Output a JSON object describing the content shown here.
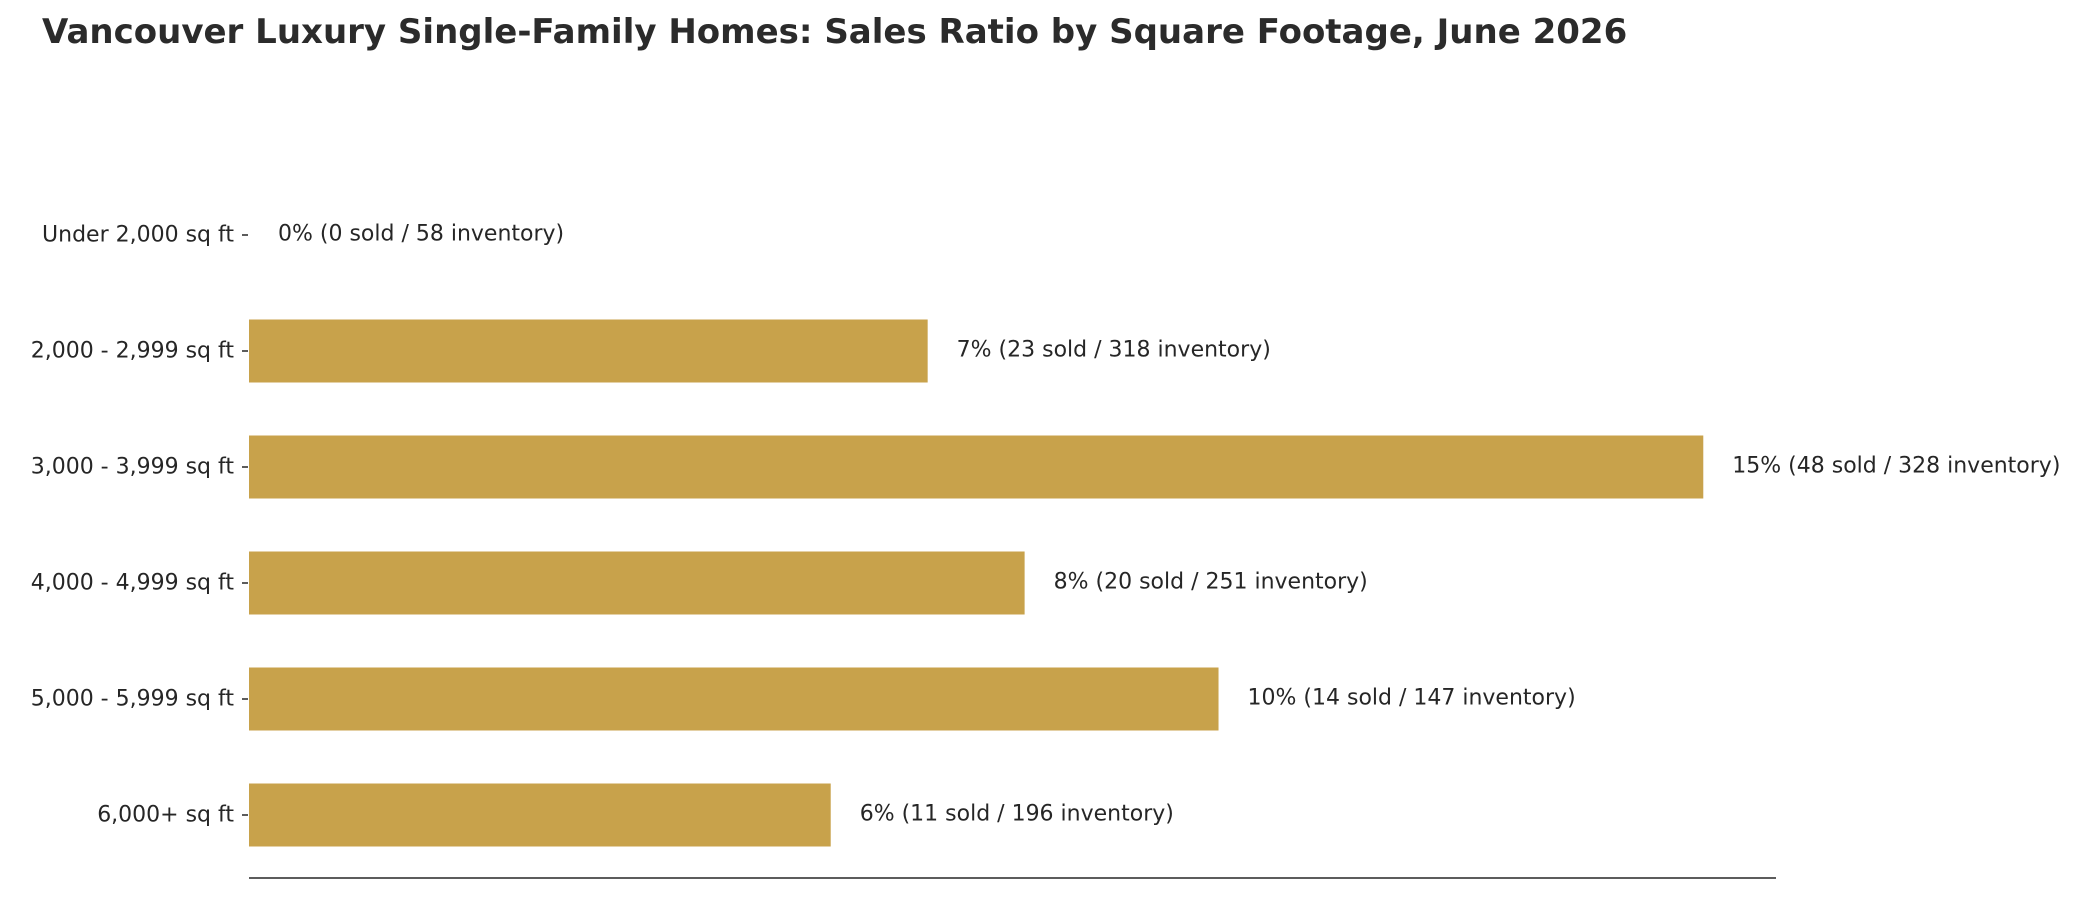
{
  "chart_data": {
    "type": "bar",
    "orientation": "horizontal",
    "title": "Vancouver Luxury Single-Family Homes: Sales Ratio by Square Footage, June 2026",
    "xlabel": "",
    "ylabel": "",
    "categories": [
      "Under 2,000 sq ft",
      "2,000 - 2,999 sq ft",
      "3,000 - 3,999 sq ft",
      "4,000 - 4,999 sq ft",
      "5,000 - 5,999 sq ft",
      "6,000+ sq ft"
    ],
    "values": [
      0,
      7,
      15,
      8,
      10,
      6
    ],
    "sold": [
      0,
      23,
      48,
      20,
      14,
      11
    ],
    "inventory": [
      58,
      318,
      328,
      251,
      147,
      196
    ],
    "data_labels": [
      "0%  (0 sold / 58 inventory)",
      "7%  (23 sold / 318 inventory)",
      "15%  (48 sold / 328 inventory)",
      "8%  (20 sold / 251 inventory)",
      "10%  (14 sold / 147 inventory)",
      "6%  (11 sold / 196 inventory)"
    ],
    "value_unit": "%",
    "xlim": [
      0,
      15.75
    ],
    "grid": false,
    "legend": "none",
    "bar_color": "#c8a24b",
    "axis_color": "#262626"
  }
}
